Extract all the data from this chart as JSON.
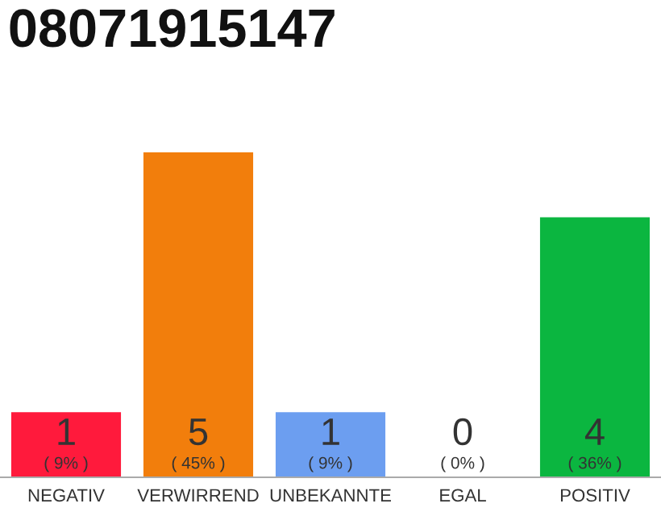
{
  "chart_data": {
    "type": "bar",
    "title": "08071915147",
    "categories": [
      "NEGATIV",
      "VERWIRREND",
      "UNBEKANNTE",
      "EGAL",
      "POSITIV"
    ],
    "values": [
      1,
      5,
      1,
      0,
      4
    ],
    "colors": [
      "#ff1a3c",
      "#f27e0c",
      "#6c9ef0",
      "#a0a0a0",
      "#0bb640"
    ],
    "value_labels": [
      "1\n( 9% )",
      "5\n( 45% )",
      "1\n( 9% )",
      "0\n( 0% )",
      "4\n( 36% )"
    ],
    "grid": false,
    "legend": false
  }
}
